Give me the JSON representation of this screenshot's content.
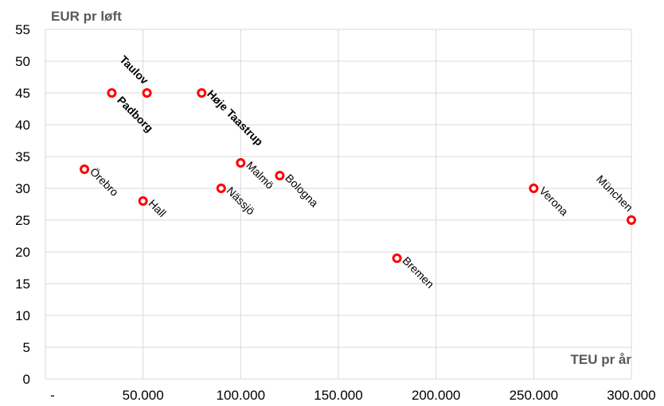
{
  "chart_data": {
    "type": "scatter",
    "title": "",
    "ylabel": "EUR pr løft",
    "xlabel": "TEU pr år",
    "xlim": [
      0,
      300000
    ],
    "ylim": [
      0,
      55
    ],
    "x_ticks": [
      0,
      50000,
      100000,
      150000,
      200000,
      250000,
      300000
    ],
    "x_tick_labels": [
      "-",
      "50.000",
      "100.000",
      "150.000",
      "200.000",
      "250.000",
      "300.000"
    ],
    "y_ticks": [
      0,
      5,
      10,
      15,
      20,
      25,
      30,
      35,
      40,
      45,
      50,
      55
    ],
    "y_tick_labels": [
      "0",
      "5",
      "10",
      "15",
      "20",
      "25",
      "30",
      "35",
      "40",
      "45",
      "50",
      "55"
    ],
    "grid": true,
    "marker_color": "#ff0000",
    "points": [
      {
        "label": "Örebro",
        "x": 20000,
        "y": 33,
        "bold": false
      },
      {
        "label": "Padborg",
        "x": 34000,
        "y": 45,
        "bold": true
      },
      {
        "label": "Hall",
        "x": 50000,
        "y": 28,
        "bold": false
      },
      {
        "label": "Taulov",
        "x": 52000,
        "y": 45,
        "bold": true
      },
      {
        "label": "Høje Taastrup",
        "x": 80000,
        "y": 45,
        "bold": true
      },
      {
        "label": "Nässjö",
        "x": 90000,
        "y": 30,
        "bold": false
      },
      {
        "label": "Malmö",
        "x": 100000,
        "y": 34,
        "bold": false
      },
      {
        "label": "Bologna",
        "x": 120000,
        "y": 32,
        "bold": false
      },
      {
        "label": "Bremen",
        "x": 180000,
        "y": 19,
        "bold": false
      },
      {
        "label": "Verona",
        "x": 250000,
        "y": 30,
        "bold": false
      },
      {
        "label": "München",
        "x": 300000,
        "y": 25,
        "bold": false
      }
    ]
  }
}
